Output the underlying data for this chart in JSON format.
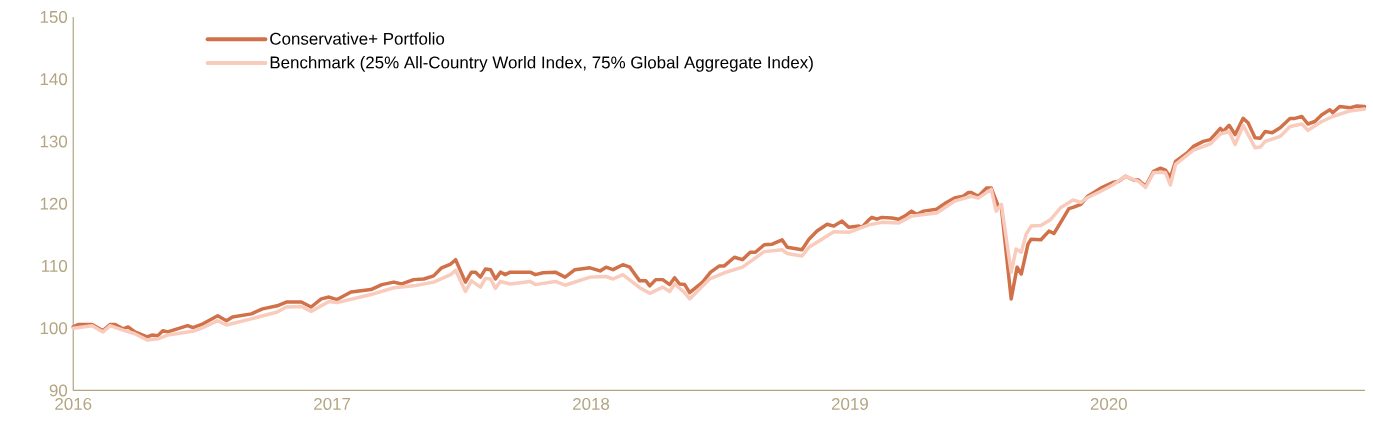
{
  "chart_data": {
    "type": "line",
    "xlim": [
      2016,
      2020.99
    ],
    "ylim": [
      90,
      150
    ],
    "xticks": [
      2016,
      2017,
      2018,
      2019,
      2020
    ],
    "yticks": [
      90,
      100,
      110,
      120,
      130,
      140,
      150
    ],
    "legend": "top left",
    "grid": false,
    "series": [
      {
        "name": "Conservative+ Portfolio",
        "color": "#d0714a",
        "x": [
          2016.0,
          2016.019,
          2016.073,
          2016.115,
          2016.142,
          2016.162,
          2016.192,
          2016.212,
          2016.238,
          2016.285,
          2016.304,
          2016.327,
          2016.346,
          2016.365,
          2016.442,
          2016.462,
          2016.496,
          2016.558,
          2016.592,
          2016.615,
          2016.688,
          2016.731,
          2016.788,
          2016.823,
          2016.881,
          2016.919,
          2016.958,
          2016.988,
          2017.019,
          2017.073,
          2017.15,
          2017.192,
          2017.238,
          2017.269,
          2017.315,
          2017.354,
          2017.392,
          2017.423,
          2017.458,
          2017.477,
          2017.515,
          2017.538,
          2017.554,
          2017.573,
          2017.592,
          2017.612,
          2017.631,
          2017.65,
          2017.669,
          2017.688,
          2017.765,
          2017.785,
          2017.815,
          2017.862,
          2017.9,
          2017.938,
          2017.996,
          2018.035,
          2018.058,
          2018.085,
          2018.123,
          2018.15,
          2018.188,
          2018.212,
          2018.227,
          2018.25,
          2018.277,
          2018.304,
          2018.323,
          2018.342,
          2018.362,
          2018.381,
          2018.431,
          2018.462,
          2018.496,
          2018.515,
          2018.554,
          2018.585,
          2018.615,
          2018.635,
          2018.669,
          2018.7,
          2018.738,
          2018.758,
          2018.815,
          2018.842,
          2018.873,
          2018.912,
          2018.938,
          2018.969,
          2018.996,
          2019.035,
          2019.046,
          2019.073,
          2019.085,
          2019.104,
          2019.123,
          2019.162,
          2019.188,
          2019.212,
          2019.238,
          2019.258,
          2019.285,
          2019.335,
          2019.373,
          2019.404,
          2019.438,
          2019.458,
          2019.469,
          2019.496,
          2019.527,
          2019.546,
          2019.573,
          2019.585,
          2019.623,
          2019.646,
          2019.662,
          2019.688,
          2019.7,
          2019.738,
          2019.769,
          2019.788,
          2019.823,
          2019.846,
          2019.862,
          2019.892,
          2019.919,
          2019.969,
          2020.015,
          2020.038,
          2020.065,
          2020.096,
          2020.115,
          2020.142,
          2020.173,
          2020.2,
          2020.219,
          2020.238,
          2020.258,
          2020.304,
          2020.327,
          2020.365,
          2020.392,
          2020.431,
          2020.442,
          2020.465,
          2020.488,
          2020.519,
          2020.538,
          2020.565,
          2020.585,
          2020.604,
          2020.631,
          2020.662,
          2020.7,
          2020.719,
          2020.746,
          2020.769,
          2020.796,
          2020.823,
          2020.854,
          2020.865,
          2020.892,
          2020.931,
          2020.958,
          2020.988
        ],
        "values": [
          100.2,
          100.6,
          100.6,
          99.6,
          100.6,
          100.6,
          99.9,
          100.2,
          99.4,
          98.6,
          98.9,
          98.8,
          99.6,
          99.4,
          100.4,
          100.1,
          100.6,
          102.0,
          101.2,
          101.8,
          102.3,
          103.1,
          103.6,
          104.2,
          104.2,
          103.4,
          104.7,
          105.0,
          104.6,
          105.8,
          106.2,
          107.0,
          107.4,
          107.1,
          107.8,
          107.9,
          108.4,
          109.7,
          110.3,
          111.0,
          107.4,
          109.0,
          109.0,
          108.2,
          109.5,
          109.4,
          107.9,
          109.0,
          108.6,
          109.0,
          109.0,
          108.6,
          108.9,
          109.0,
          108.2,
          109.4,
          109.7,
          109.2,
          109.8,
          109.4,
          110.2,
          109.8,
          107.6,
          107.6,
          106.8,
          107.8,
          107.8,
          107.0,
          108.1,
          107.1,
          107.0,
          105.7,
          107.4,
          109.0,
          110.0,
          110.0,
          111.4,
          111.0,
          112.2,
          112.2,
          113.4,
          113.5,
          114.2,
          113.0,
          112.6,
          114.3,
          115.6,
          116.7,
          116.4,
          117.2,
          116.2,
          116.4,
          116.2,
          117.4,
          117.8,
          117.5,
          117.8,
          117.7,
          117.5,
          118.0,
          118.8,
          118.3,
          118.8,
          119.1,
          120.2,
          120.9,
          121.2,
          121.8,
          121.8,
          121.2,
          122.5,
          122.5,
          119.6,
          119.4,
          104.7,
          109.8,
          108.7,
          113.5,
          114.3,
          114.2,
          115.6,
          115.2,
          117.6,
          119.2,
          119.4,
          119.9,
          121.2,
          122.5,
          123.4,
          123.6,
          124.4,
          123.8,
          123.8,
          122.8,
          125.2,
          125.7,
          125.4,
          124.2,
          126.8,
          128.2,
          129.2,
          130.0,
          130.3,
          132.1,
          131.6,
          132.6,
          131.1,
          133.7,
          133.0,
          130.6,
          130.5,
          131.6,
          131.4,
          132.2,
          133.7,
          133.7,
          134.0,
          132.8,
          133.2,
          134.3,
          135.1,
          134.6,
          135.6,
          135.4,
          135.7,
          135.6
        ]
      },
      {
        "name": "Benchmark (25% All-Country World Index, 75% Global Aggregate Index)",
        "color": "#f9cbbc",
        "x": [
          2016.0,
          2016.073,
          2016.115,
          2016.142,
          2016.192,
          2016.238,
          2016.285,
          2016.327,
          2016.365,
          2016.462,
          2016.496,
          2016.558,
          2016.592,
          2016.688,
          2016.788,
          2016.823,
          2016.881,
          2016.919,
          2016.988,
          2017.019,
          2017.15,
          2017.238,
          2017.315,
          2017.392,
          2017.458,
          2017.477,
          2017.515,
          2017.538,
          2017.573,
          2017.592,
          2017.612,
          2017.631,
          2017.65,
          2017.688,
          2017.765,
          2017.785,
          2017.862,
          2017.9,
          2017.996,
          2018.058,
          2018.085,
          2018.123,
          2018.188,
          2018.227,
          2018.277,
          2018.304,
          2018.323,
          2018.362,
          2018.381,
          2018.458,
          2018.515,
          2018.585,
          2018.669,
          2018.738,
          2018.758,
          2018.815,
          2018.842,
          2018.938,
          2018.996,
          2019.073,
          2019.123,
          2019.188,
          2019.238,
          2019.335,
          2019.404,
          2019.469,
          2019.496,
          2019.546,
          2019.565,
          2019.585,
          2019.623,
          2019.642,
          2019.662,
          2019.681,
          2019.7,
          2019.738,
          2019.777,
          2019.815,
          2019.862,
          2019.892,
          2019.919,
          2019.969,
          2020.015,
          2020.065,
          2020.115,
          2020.142,
          2020.173,
          2020.219,
          2020.238,
          2020.258,
          2020.327,
          2020.392,
          2020.431,
          2020.465,
          2020.488,
          2020.519,
          2020.565,
          2020.585,
          2020.604,
          2020.662,
          2020.7,
          2020.746,
          2020.769,
          2020.823,
          2020.865,
          2020.931,
          2020.988
        ],
        "values": [
          100.0,
          100.4,
          99.4,
          100.4,
          99.7,
          99.1,
          98.1,
          98.3,
          98.9,
          99.5,
          100.0,
          101.2,
          100.5,
          101.5,
          102.6,
          103.4,
          103.5,
          102.7,
          104.3,
          104.1,
          105.4,
          106.5,
          106.8,
          107.4,
          108.6,
          109.3,
          105.9,
          107.6,
          106.6,
          108.0,
          107.9,
          106.4,
          107.5,
          107.1,
          107.5,
          107.0,
          107.5,
          106.9,
          108.2,
          108.3,
          107.9,
          108.6,
          106.5,
          105.6,
          106.6,
          105.9,
          107.1,
          105.7,
          104.7,
          107.9,
          108.9,
          109.8,
          112.3,
          112.6,
          112.0,
          111.6,
          113.0,
          115.5,
          115.4,
          116.6,
          117.0,
          116.9,
          118.0,
          118.5,
          120.4,
          121.2,
          120.9,
          122.3,
          118.8,
          119.9,
          109.0,
          112.7,
          112.2,
          115.1,
          116.4,
          116.5,
          117.5,
          119.4,
          120.6,
          120.2,
          121.0,
          122.0,
          123.0,
          124.4,
          123.6,
          122.6,
          125.0,
          125.0,
          123.0,
          126.3,
          128.6,
          129.6,
          131.2,
          131.6,
          129.5,
          132.6,
          129.0,
          129.1,
          130.0,
          130.8,
          132.4,
          132.8,
          131.8,
          133.2,
          134.0,
          134.9,
          135.2
        ]
      }
    ]
  }
}
